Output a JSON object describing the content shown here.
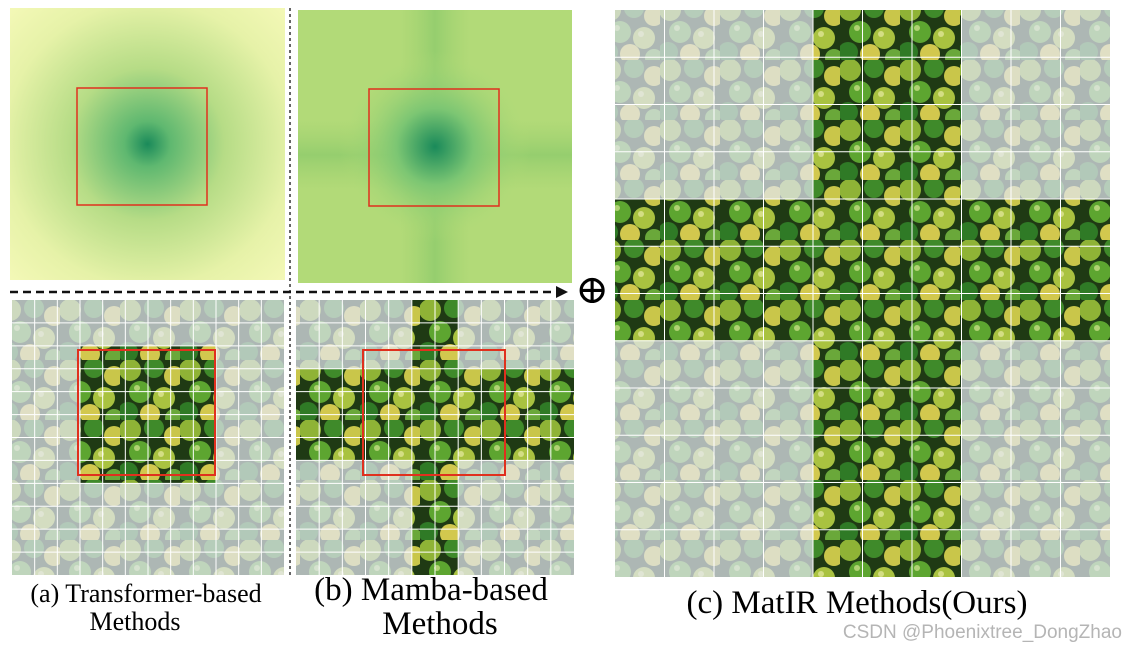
{
  "panels": [
    {
      "caption": [
        "(a) Transformer-based",
        "Methods"
      ]
    },
    {
      "caption": [
        "(b) Mamba-based",
        "Methods"
      ]
    },
    {
      "caption": [
        "(c) MatIR Methods(Ours)"
      ]
    }
  ],
  "operator": "⊕",
  "watermark": "CSDN @Phoenixtree_DongZhao"
}
